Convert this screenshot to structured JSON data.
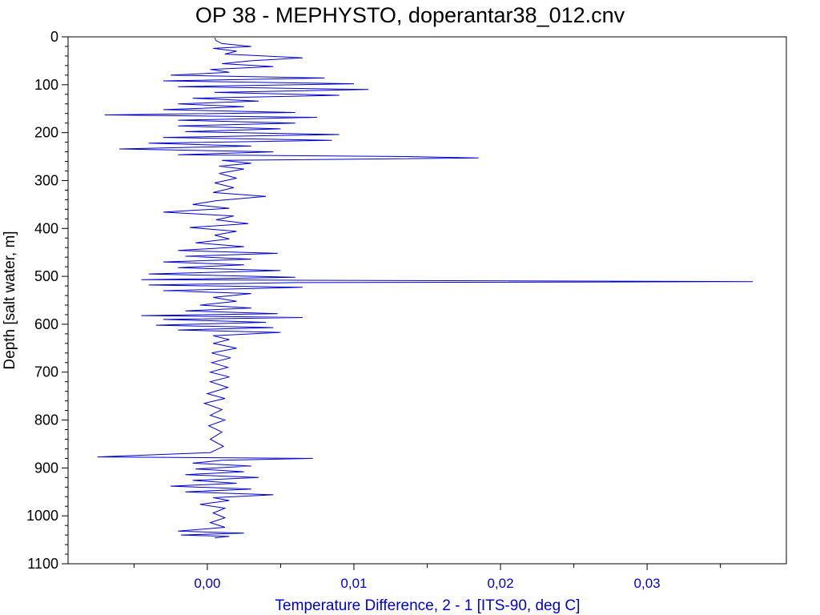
{
  "chart_data": {
    "type": "line",
    "title": "OP 38 - MEPHYSTO, doperantar38_012.cnv",
    "xlabel": "Temperature Difference, 2 - 1 [ITS-90, deg C]",
    "ylabel": "Depth [salt water, m]",
    "xlim": [
      -0.0095,
      0.0395
    ],
    "ylim": [
      1100,
      0
    ],
    "y_inverted": true,
    "x_ticks": [
      0.0,
      0.01,
      0.02,
      0.03
    ],
    "x_tick_labels": [
      "0,00",
      "0,01",
      "0,02",
      "0,03"
    ],
    "y_ticks": [
      0,
      100,
      200,
      300,
      400,
      500,
      600,
      700,
      800,
      900,
      1000,
      1100
    ],
    "y_tick_labels": [
      "0",
      "100",
      "200",
      "300",
      "400",
      "500",
      "600",
      "700",
      "800",
      "900",
      "1000",
      "1100"
    ],
    "grid": false,
    "series": [
      {
        "color": "#0000cc",
        "points": [
          [
            0.0005,
            2
          ],
          [
            0.0006,
            8
          ],
          [
            0.001,
            14
          ],
          [
            0.003,
            20
          ],
          [
            0.0004,
            24
          ],
          [
            0.002,
            30
          ],
          [
            0.0012,
            36
          ],
          [
            0.0065,
            44
          ],
          [
            0.003,
            50
          ],
          [
            0.001,
            56
          ],
          [
            0.0045,
            62
          ],
          [
            0.0002,
            68
          ],
          [
            0.0015,
            74
          ],
          [
            -0.0025,
            80
          ],
          [
            0.008,
            86
          ],
          [
            -0.003,
            92
          ],
          [
            0.01,
            98
          ],
          [
            -0.002,
            104
          ],
          [
            0.011,
            110
          ],
          [
            0.0005,
            116
          ],
          [
            0.009,
            122
          ],
          [
            -0.001,
            128
          ],
          [
            0.0035,
            134
          ],
          [
            -0.002,
            140
          ],
          [
            0.0025,
            146
          ],
          [
            -0.003,
            152
          ],
          [
            0.006,
            158
          ],
          [
            -0.007,
            163
          ],
          [
            0.0075,
            168
          ],
          [
            -0.002,
            174
          ],
          [
            0.006,
            180
          ],
          [
            -0.002,
            186
          ],
          [
            0.005,
            192
          ],
          [
            -0.0015,
            198
          ],
          [
            0.009,
            204
          ],
          [
            -0.003,
            210
          ],
          [
            0.0085,
            216
          ],
          [
            -0.004,
            222
          ],
          [
            0.003,
            228
          ],
          [
            -0.006,
            234
          ],
          [
            0.0045,
            240
          ],
          [
            -0.002,
            246
          ],
          [
            0.0135,
            250
          ],
          [
            0.0185,
            253
          ],
          [
            0.001,
            258
          ],
          [
            0.003,
            264
          ],
          [
            0.0008,
            270
          ],
          [
            0.0025,
            276
          ],
          [
            0.0008,
            285
          ],
          [
            0.002,
            295
          ],
          [
            0.0005,
            305
          ],
          [
            0.0018,
            315
          ],
          [
            0.0004,
            325
          ],
          [
            0.004,
            333
          ],
          [
            0.0006,
            342
          ],
          [
            -0.001,
            350
          ],
          [
            0.0015,
            358
          ],
          [
            -0.003,
            366
          ],
          [
            0.0018,
            374
          ],
          [
            0.0006,
            382
          ],
          [
            0.0028,
            390
          ],
          [
            -0.0012,
            398
          ],
          [
            0.002,
            406
          ],
          [
            0.0005,
            414
          ],
          [
            0.0015,
            422
          ],
          [
            -0.0008,
            430
          ],
          [
            0.0025,
            438
          ],
          [
            -0.002,
            446
          ],
          [
            0.0048,
            452
          ],
          [
            -0.0015,
            458
          ],
          [
            0.003,
            464
          ],
          [
            -0.003,
            470
          ],
          [
            0.0025,
            476
          ],
          [
            -0.002,
            482
          ],
          [
            0.005,
            488
          ],
          [
            -0.004,
            495
          ],
          [
            0.006,
            502
          ],
          [
            -0.0045,
            507
          ],
          [
            0.0165,
            509
          ],
          [
            0.0372,
            511
          ],
          [
            0.006,
            513
          ],
          [
            -0.004,
            518
          ],
          [
            0.0065,
            523
          ],
          [
            -0.003,
            530
          ],
          [
            0.003,
            536
          ],
          [
            0.0004,
            544
          ],
          [
            0.002,
            552
          ],
          [
            -0.0005,
            560
          ],
          [
            0.003,
            566
          ],
          [
            -0.0015,
            572
          ],
          [
            0.0048,
            578
          ],
          [
            -0.0045,
            582
          ],
          [
            0.0065,
            586
          ],
          [
            -0.003,
            590
          ],
          [
            0.004,
            596
          ],
          [
            -0.0035,
            602
          ],
          [
            0.0045,
            607
          ],
          [
            -0.002,
            612
          ],
          [
            0.005,
            617
          ],
          [
            0.0004,
            624
          ],
          [
            0.0015,
            632
          ],
          [
            0.0004,
            640
          ],
          [
            0.002,
            650
          ],
          [
            0.0003,
            660
          ],
          [
            0.0016,
            670
          ],
          [
            0.0003,
            680
          ],
          [
            0.0014,
            690
          ],
          [
            0.0002,
            700
          ],
          [
            0.0015,
            710
          ],
          [
            0.0002,
            720
          ],
          [
            0.0014,
            732
          ],
          [
            0.0,
            745
          ],
          [
            0.0012,
            755
          ],
          [
            -0.0002,
            765
          ],
          [
            0.001,
            778
          ],
          [
            0.0002,
            790
          ],
          [
            0.0012,
            800
          ],
          [
            0.0001,
            812
          ],
          [
            0.001,
            825
          ],
          [
            0.0002,
            840
          ],
          [
            0.0011,
            855
          ],
          [
            0.0002,
            868
          ],
          [
            -0.0075,
            877
          ],
          [
            0.0072,
            880
          ],
          [
            0.001,
            884
          ],
          [
            -0.001,
            890
          ],
          [
            0.003,
            896
          ],
          [
            -0.0008,
            902
          ],
          [
            0.0025,
            908
          ],
          [
            -0.0015,
            914
          ],
          [
            0.0035,
            920
          ],
          [
            -0.001,
            926
          ],
          [
            0.002,
            932
          ],
          [
            -0.0025,
            938
          ],
          [
            0.003,
            944
          ],
          [
            -0.0015,
            950
          ],
          [
            0.0045,
            956
          ],
          [
            0.0004,
            962
          ],
          [
            0.0015,
            968
          ],
          [
            -0.0005,
            976
          ],
          [
            0.0012,
            984
          ],
          [
            0.0004,
            994
          ],
          [
            0.0012,
            1004
          ],
          [
            0.0002,
            1014
          ],
          [
            0.0012,
            1024
          ],
          [
            -0.002,
            1032
          ],
          [
            0.0025,
            1036
          ],
          [
            -0.0018,
            1040
          ],
          [
            0.0015,
            1043
          ],
          [
            0.0005,
            1046
          ]
        ]
      }
    ]
  }
}
